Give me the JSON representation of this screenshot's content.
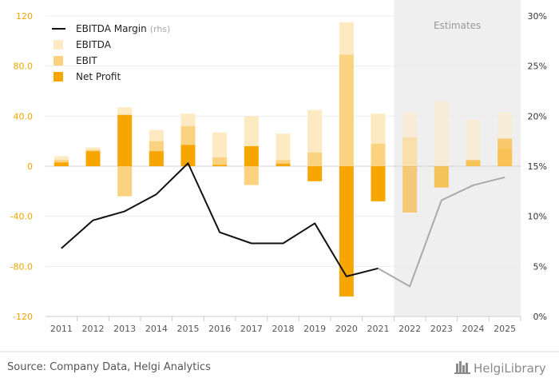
{
  "chart_data": {
    "type": "bar",
    "categories": [
      "2011",
      "2012",
      "2013",
      "2014",
      "2015",
      "2016",
      "2017",
      "2018",
      "2019",
      "2020",
      "2021",
      "2022",
      "2023",
      "2024",
      "2025"
    ],
    "series": [
      {
        "name": "EBITDA",
        "kind": "bar",
        "color": "#fde9c2",
        "values": [
          8,
          15,
          47,
          29,
          42,
          27,
          40,
          26,
          45,
          115,
          42,
          43,
          52,
          37,
          43
        ]
      },
      {
        "name": "EBIT",
        "kind": "bar",
        "color": "#fbd27f",
        "values": [
          5,
          13,
          -24,
          20,
          32,
          7,
          -15,
          5,
          11,
          89,
          18,
          23,
          -17,
          4,
          14
        ]
      },
      {
        "name": "Net Profit",
        "kind": "bar",
        "color": "#f7a600",
        "values": [
          3,
          12,
          41,
          12,
          17,
          1,
          16,
          2,
          -12,
          -104,
          -28,
          -37,
          -17,
          5,
          22
        ]
      },
      {
        "name": "EBITDA Margin",
        "name_suffix": "(rhs)",
        "kind": "line",
        "axis": "right",
        "color": "#111111",
        "estimate_color": "#aaaaaa",
        "values": [
          6.8,
          9.6,
          10.5,
          12.2,
          15.3,
          8.4,
          7.3,
          7.3,
          9.3,
          4.0,
          4.8,
          3.0,
          11.6,
          13.1,
          13.9
        ]
      }
    ],
    "series_draw_order": [
      "EBITDA",
      "EBIT",
      "Net Profit"
    ],
    "legend_order": [
      "EBITDA Margin",
      "EBITDA",
      "EBIT",
      "Net Profit"
    ],
    "ylim": [
      -120,
      120
    ],
    "yticks": [
      "120",
      "80.0",
      "40.0",
      "0",
      "-40.0",
      "-80.0",
      "-120"
    ],
    "ytick_values": [
      120,
      80,
      40,
      0,
      -40,
      -80,
      -120
    ],
    "y2lim": [
      0,
      30
    ],
    "y2ticks": [
      "30%",
      "25%",
      "20%",
      "15%",
      "10%",
      "5%",
      "0%"
    ],
    "y2tick_values": [
      30,
      25,
      20,
      15,
      10,
      5,
      0
    ],
    "estimates_start_index": 11,
    "estimates_label": "Estimates",
    "estimate_bar_opacity": 0.5,
    "legend_position": "top-left",
    "grid": "horizontal"
  },
  "footer": {
    "source": "Source: Company Data, Helgi Analytics",
    "brand": "HelgiLibrary"
  }
}
